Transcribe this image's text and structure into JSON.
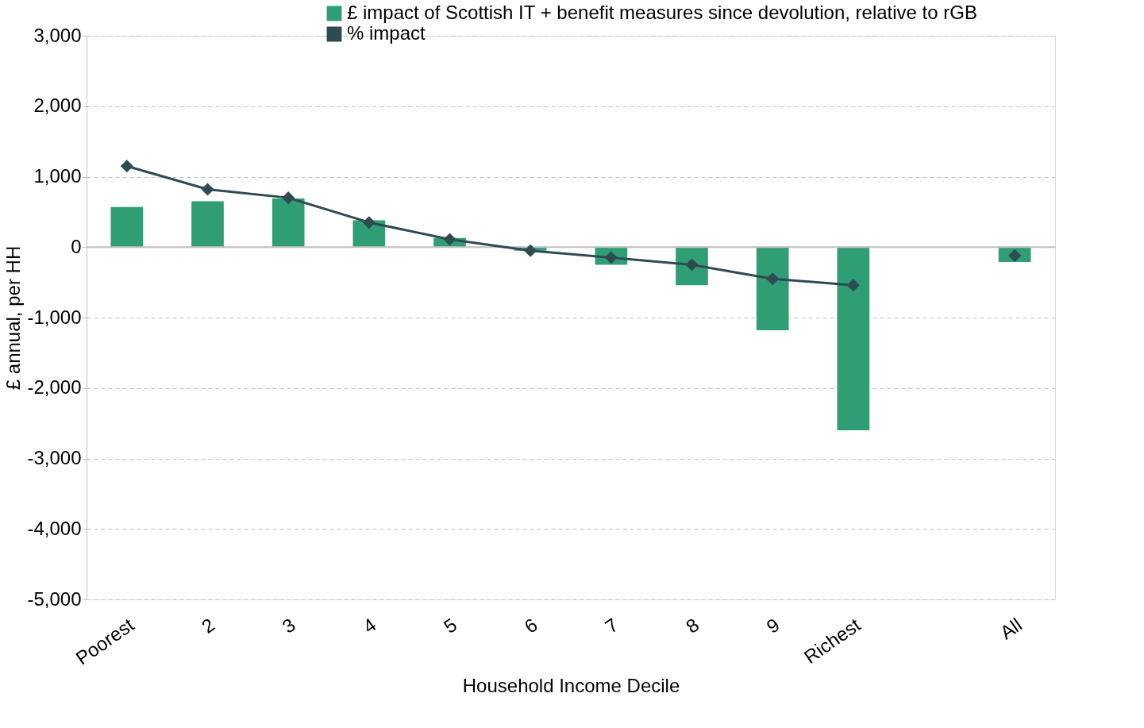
{
  "chart_data": {
    "type": "bar",
    "xlabel": "Household Income Decile",
    "ylabel": "£ annual, per HH",
    "categories": [
      "Poorest",
      "2",
      "3",
      "4",
      "5",
      "6",
      "7",
      "8",
      "9",
      "Richest",
      null,
      "All"
    ],
    "series": [
      {
        "name": "£ impact of Scottish IT + benefit measures since devolution, relative to rGB",
        "color": "#2f9e74",
        "values": [
          570,
          650,
          690,
          380,
          130,
          -50,
          -250,
          -540,
          -1180,
          -2600,
          null,
          -210
        ]
      },
      {
        "name": "% impact",
        "type": "line",
        "color": "#2f4b52",
        "marker": "diamond",
        "values": [
          1150,
          820,
          700,
          350,
          110,
          -50,
          -150,
          -250,
          -450,
          -540,
          null,
          -120
        ]
      }
    ],
    "ylim": [
      -5000,
      3000
    ],
    "yticks": [
      {
        "value": -5000,
        "label": "-5,000"
      },
      {
        "value": -4000,
        "label": "-4,000"
      },
      {
        "value": -3000,
        "label": "-3,000"
      },
      {
        "value": -2000,
        "label": "-2,000"
      },
      {
        "value": -1000,
        "label": "-1,000"
      },
      0,
      {
        "value": 1000,
        "label": "1,000"
      },
      {
        "value": 2000,
        "label": "2,000"
      },
      {
        "value": 3000,
        "label": "3,000"
      }
    ],
    "grid": "y",
    "legend": "top right"
  }
}
